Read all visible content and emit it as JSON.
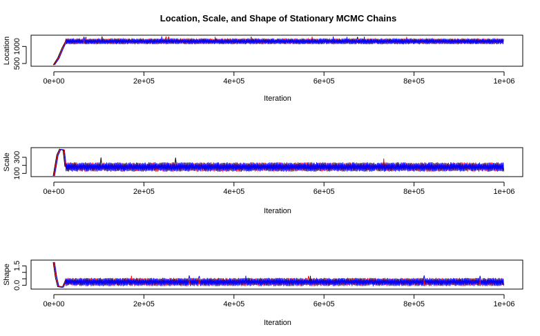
{
  "title": "Location, Scale, and Shape of Stationary MCMC Chains",
  "colors": {
    "chain1": "#000000",
    "chain2": "#ff0000",
    "chain3": "#0000ff"
  },
  "chart_data": [
    {
      "type": "line",
      "ylabel": "Location",
      "xlabel": "Iteration",
      "xlim": [
        0,
        1000000
      ],
      "ylim": [
        420,
        1330
      ],
      "yticks": [
        500,
        1000
      ],
      "ytick_labels": [
        "500",
        "1000"
      ],
      "xticks": [
        0,
        200000,
        400000,
        600000,
        800000,
        1000000
      ],
      "xtick_labels": [
        "0e+00",
        "2e+05",
        "4e+05",
        "6e+05",
        "8e+05",
        "1e+06"
      ],
      "burn_in": [
        [
          0,
          450
        ],
        [
          10000,
          650
        ],
        [
          20000,
          950
        ],
        [
          27000,
          1150
        ]
      ],
      "stationary": {
        "center": 1150,
        "band": [
          1070,
          1230
        ],
        "spike_max": 1290
      },
      "series": [
        {},
        {},
        {}
      ]
    },
    {
      "type": "line",
      "ylabel": "Scale",
      "xlabel": "Iteration",
      "xlim": [
        0,
        1000000
      ],
      "ylim": [
        60,
        420
      ],
      "yticks": [
        100,
        200,
        300
      ],
      "ytick_labels": [
        "100",
        "",
        "300"
      ],
      "xticks": [
        0,
        200000,
        400000,
        600000,
        800000,
        1000000
      ],
      "xtick_labels": [
        "0e+00",
        "2e+05",
        "4e+05",
        "6e+05",
        "8e+05",
        "1e+06"
      ],
      "burn_in": [
        [
          0,
          70
        ],
        [
          8000,
          330
        ],
        [
          14000,
          400
        ],
        [
          22000,
          390
        ],
        [
          26000,
          180
        ]
      ],
      "stationary": {
        "center": 175,
        "band": [
          125,
          235
        ],
        "spike_max": 300
      },
      "series": [
        {},
        {},
        {}
      ]
    },
    {
      "type": "line",
      "ylabel": "Shape",
      "xlabel": "Iteration",
      "xlim": [
        0,
        1000000
      ],
      "ylim": [
        -0.3,
        1.95
      ],
      "yticks": [
        0.0,
        0.5,
        1.0,
        1.5
      ],
      "ytick_labels": [
        "0.0",
        "",
        "",
        "1.5"
      ],
      "xticks": [
        0,
        200000,
        400000,
        600000,
        800000,
        1000000
      ],
      "xtick_labels": [
        "0e+00",
        "2e+05",
        "4e+05",
        "6e+05",
        "8e+05",
        "1e+06"
      ],
      "burn_in": [
        [
          0,
          1.8
        ],
        [
          5000,
          0.6
        ],
        [
          10000,
          -0.1
        ],
        [
          20000,
          -0.15
        ],
        [
          26000,
          0.3
        ]
      ],
      "stationary": {
        "center": 0.25,
        "band": [
          -0.05,
          0.55
        ],
        "spike_max": 0.75
      },
      "series": [
        {},
        {},
        {}
      ]
    }
  ]
}
